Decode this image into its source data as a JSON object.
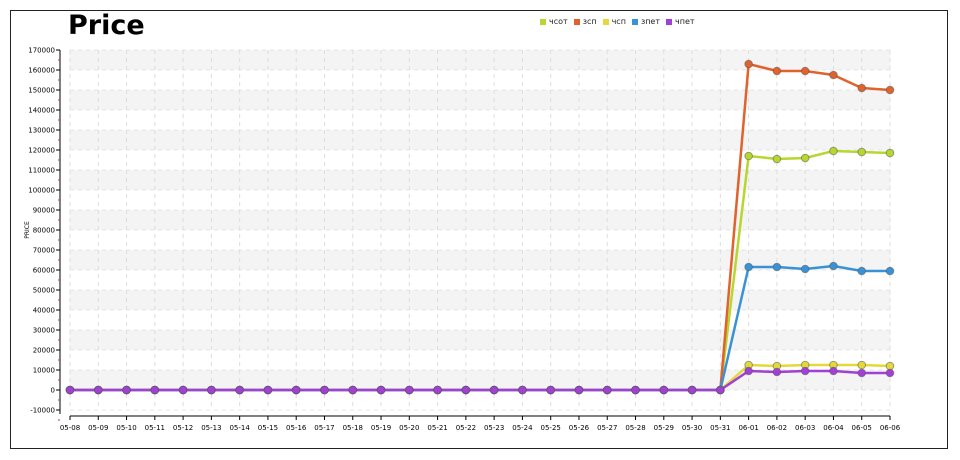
{
  "chart_data": {
    "type": "line",
    "title": "Price",
    "xlabel": "",
    "ylabel": "PRICE",
    "ylim": [
      -10000,
      170000
    ],
    "ytick_step": 10000,
    "grid": true,
    "legend_position": "top",
    "categories": [
      "05-08",
      "05-09",
      "05-10",
      "05-11",
      "05-12",
      "05-13",
      "05-14",
      "05-15",
      "05-16",
      "05-17",
      "05-18",
      "05-19",
      "05-20",
      "05-21",
      "05-22",
      "05-23",
      "05-24",
      "05-25",
      "05-26",
      "05-27",
      "05-28",
      "05-29",
      "05-30",
      "05-31",
      "06-01",
      "06-02",
      "06-03",
      "06-04",
      "06-05",
      "06-06"
    ],
    "series": [
      {
        "name": "чсот",
        "color": "#b8d630",
        "values": [
          0,
          0,
          0,
          0,
          0,
          0,
          0,
          0,
          0,
          0,
          0,
          0,
          0,
          0,
          0,
          0,
          0,
          0,
          0,
          0,
          0,
          0,
          0,
          0,
          117000,
          115500,
          116000,
          119500,
          119000,
          118500
        ]
      },
      {
        "name": "зсп",
        "color": "#e0622c",
        "values": [
          0,
          0,
          0,
          0,
          0,
          0,
          0,
          0,
          0,
          0,
          0,
          0,
          0,
          0,
          0,
          0,
          0,
          0,
          0,
          0,
          0,
          0,
          0,
          0,
          163000,
          159500,
          159500,
          157500,
          151000,
          150000
        ]
      },
      {
        "name": "чсп",
        "color": "#e3d93a",
        "values": [
          0,
          0,
          0,
          0,
          0,
          0,
          0,
          0,
          0,
          0,
          0,
          0,
          0,
          0,
          0,
          0,
          0,
          0,
          0,
          0,
          0,
          0,
          0,
          0,
          12500,
          12000,
          12500,
          12500,
          12500,
          12000
        ]
      },
      {
        "name": "зпет",
        "color": "#3a92d6",
        "values": [
          0,
          0,
          0,
          0,
          0,
          0,
          0,
          0,
          0,
          0,
          0,
          0,
          0,
          0,
          0,
          0,
          0,
          0,
          0,
          0,
          0,
          0,
          0,
          0,
          61500,
          61500,
          60500,
          62000,
          59500,
          59500
        ]
      },
      {
        "name": "чпет",
        "color": "#a23fd6",
        "values": [
          0,
          0,
          0,
          0,
          0,
          0,
          0,
          0,
          0,
          0,
          0,
          0,
          0,
          0,
          0,
          0,
          0,
          0,
          0,
          0,
          0,
          0,
          0,
          0,
          9500,
          9000,
          9500,
          9500,
          8500,
          8500
        ]
      }
    ]
  }
}
